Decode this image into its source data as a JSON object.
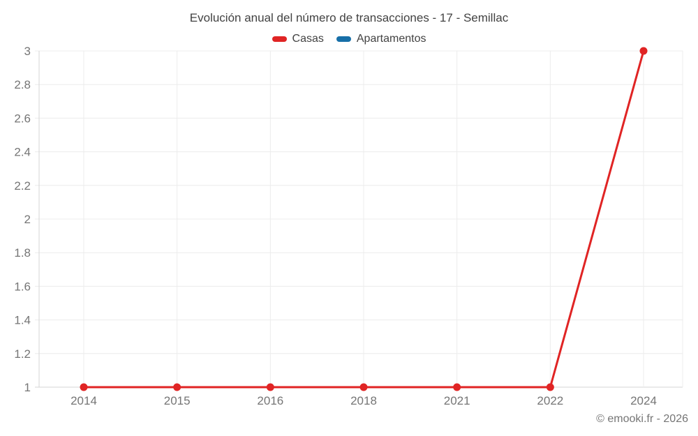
{
  "chart_data": {
    "type": "line",
    "title": "Evolución anual del número de transacciones - 17 - Semillac",
    "categories": [
      "2014",
      "2015",
      "2016",
      "2018",
      "2021",
      "2022",
      "2024"
    ],
    "series": [
      {
        "name": "Casas",
        "color": "#e02424",
        "values": [
          1,
          1,
          1,
          1,
          1,
          1,
          3
        ]
      },
      {
        "name": "Apartamentos",
        "color": "#176fa8",
        "values": [
          null,
          null,
          null,
          null,
          null,
          null,
          null
        ]
      }
    ],
    "ylim": [
      1,
      3
    ],
    "ytick_step": 0.2,
    "ytick_labels": [
      "1",
      "1.2",
      "1.4",
      "1.6",
      "1.8",
      "2",
      "2.2",
      "2.4",
      "2.6",
      "2.8",
      "3"
    ],
    "grid": true,
    "legend_position": "top",
    "credit": "© emooki.fr - 2026",
    "colors": {
      "grid": "#ececec",
      "axis": "#d6d6d6",
      "tick_label": "#757575",
      "title_text": "#424242",
      "legend_text": "#424242",
      "credit_text": "#757575",
      "background": "#ffffff"
    }
  }
}
